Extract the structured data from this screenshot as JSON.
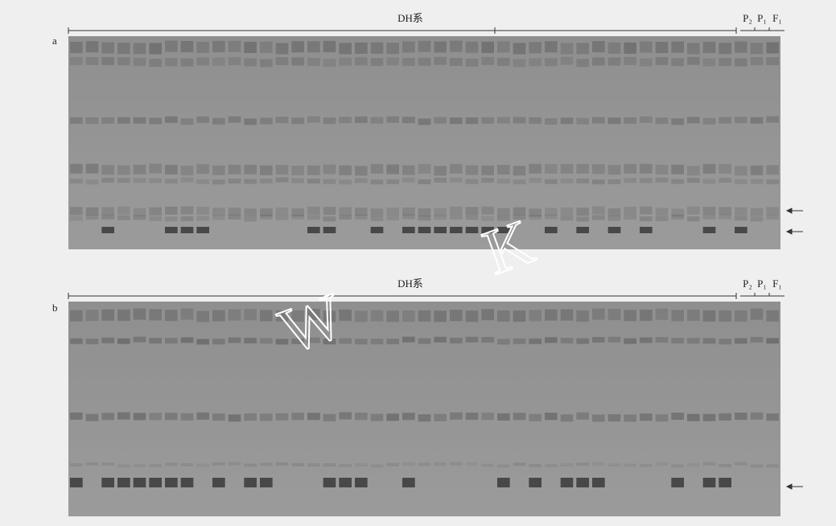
{
  "panels": [
    {
      "label": "a",
      "group": "DH系",
      "parents": [
        "P₂",
        "P₁",
        "F₁"
      ]
    },
    {
      "label": "b",
      "group": "DH系",
      "parents": [
        "P₂",
        "P₁",
        "F₁"
      ]
    }
  ],
  "watermark": [
    "W",
    "K"
  ]
}
